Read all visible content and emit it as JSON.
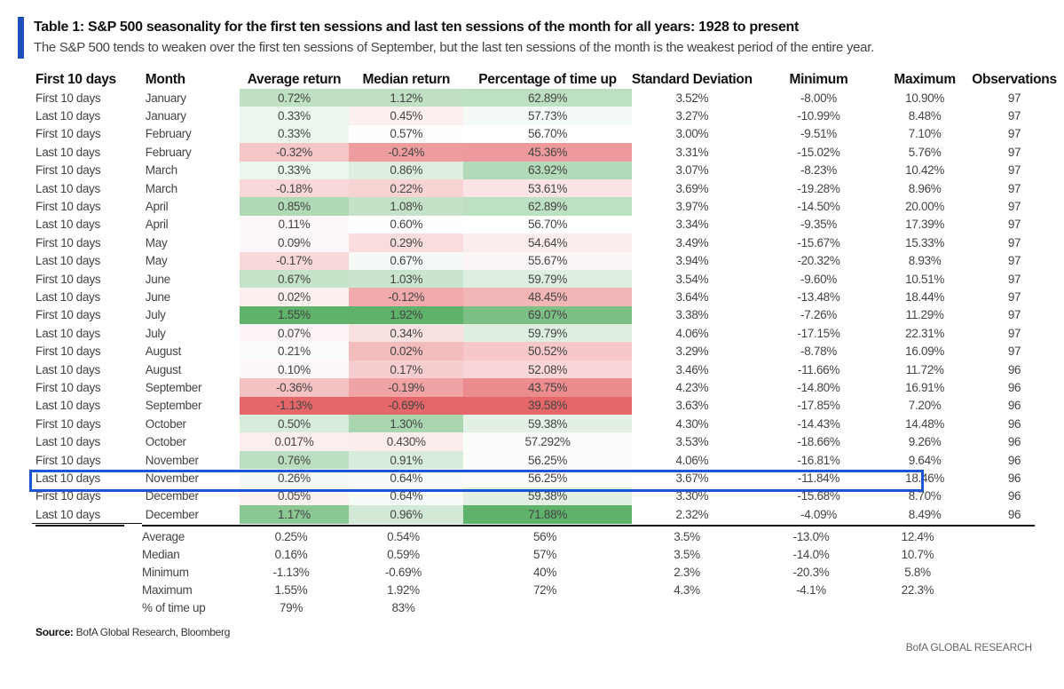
{
  "header": {
    "title": "Table 1: S&P 500 seasonality for the first ten sessions and last ten sessions of the month for all years: 1928 to present",
    "subtitle": "The S&P 500 tends to weaken over the first ten sessions of September, but the last ten sessions of the month is the weakest period of the entire year."
  },
  "columns": [
    "First 10 days",
    "Month",
    "Average return",
    "Median return",
    "Percentage of time up",
    "Standard Deviation",
    "Minimum",
    "Maximum",
    "Observations"
  ],
  "rows": [
    [
      "First 10 days",
      "January",
      "0.72%",
      "1.12%",
      "62.89%",
      "3.52%",
      "-8.00%",
      "10.90%",
      "97"
    ],
    [
      "Last 10 days",
      "January",
      "0.33%",
      "0.45%",
      "57.73%",
      "3.27%",
      "-10.99%",
      "8.48%",
      "97"
    ],
    [
      "First 10 days",
      "February",
      "0.33%",
      "0.57%",
      "56.70%",
      "3.00%",
      "-9.51%",
      "7.10%",
      "97"
    ],
    [
      "Last 10 days",
      "February",
      "-0.32%",
      "-0.24%",
      "45.36%",
      "3.31%",
      "-15.02%",
      "5.76%",
      "97"
    ],
    [
      "First 10 days",
      "March",
      "0.33%",
      "0.86%",
      "63.92%",
      "3.07%",
      "-8.23%",
      "10.42%",
      "97"
    ],
    [
      "Last 10 days",
      "March",
      "-0.18%",
      "0.22%",
      "53.61%",
      "3.69%",
      "-19.28%",
      "8.96%",
      "97"
    ],
    [
      "First 10 days",
      "April",
      "0.85%",
      "1.08%",
      "62.89%",
      "3.97%",
      "-14.50%",
      "20.00%",
      "97"
    ],
    [
      "Last 10 days",
      "April",
      "0.11%",
      "0.60%",
      "56.70%",
      "3.34%",
      "-9.35%",
      "17.39%",
      "97"
    ],
    [
      "First 10 days",
      "May",
      "0.09%",
      "0.29%",
      "54.64%",
      "3.49%",
      "-15.67%",
      "15.33%",
      "97"
    ],
    [
      "Last 10 days",
      "May",
      "-0.17%",
      "0.67%",
      "55.67%",
      "3.94%",
      "-20.32%",
      "8.93%",
      "97"
    ],
    [
      "First 10 days",
      "June",
      "0.67%",
      "1.03%",
      "59.79%",
      "3.54%",
      "-9.60%",
      "10.51%",
      "97"
    ],
    [
      "Last 10 days",
      "June",
      "0.02%",
      "-0.12%",
      "48.45%",
      "3.64%",
      "-13.48%",
      "18.44%",
      "97"
    ],
    [
      "First 10 days",
      "July",
      "1.55%",
      "1.92%",
      "69.07%",
      "3.38%",
      "-7.26%",
      "11.29%",
      "97"
    ],
    [
      "Last 10 days",
      "July",
      "0.07%",
      "0.34%",
      "59.79%",
      "4.06%",
      "-17.15%",
      "22.31%",
      "97"
    ],
    [
      "First 10 days",
      "August",
      "0.21%",
      "0.02%",
      "50.52%",
      "3.29%",
      "-8.78%",
      "16.09%",
      "97"
    ],
    [
      "Last 10 days",
      "August",
      "0.10%",
      "0.17%",
      "52.08%",
      "3.46%",
      "-11.66%",
      "11.72%",
      "96"
    ],
    [
      "First 10 days",
      "September",
      "-0.36%",
      "-0.19%",
      "43.75%",
      "4.23%",
      "-14.80%",
      "16.91%",
      "96"
    ],
    [
      "Last 10 days",
      "September",
      "-1.13%",
      "-0.69%",
      "39.58%",
      "3.63%",
      "-17.85%",
      "7.20%",
      "96"
    ],
    [
      "First 10 days",
      "October",
      "0.50%",
      "1.30%",
      "59.38%",
      "4.30%",
      "-14.43%",
      "14.48%",
      "96"
    ],
    [
      "Last 10 days",
      "October",
      "0.017%",
      "0.430%",
      "57.292%",
      "3.53%",
      "-18.66%",
      "9.26%",
      "96"
    ],
    [
      "First 10 days",
      "November",
      "0.76%",
      "0.91%",
      "56.25%",
      "4.06%",
      "-16.81%",
      "9.64%",
      "96"
    ],
    [
      "Last 10 days",
      "November",
      "0.26%",
      "0.64%",
      "56.25%",
      "3.67%",
      "-11.84%",
      "18.46%",
      "96"
    ],
    [
      "First 10 days",
      "December",
      "0.05%",
      "0.64%",
      "59.38%",
      "3.30%",
      "-15.68%",
      "8.70%",
      "96"
    ],
    [
      "Last 10 days",
      "December",
      "1.17%",
      "0.96%",
      "71.88%",
      "2.32%",
      "-4.09%",
      "8.49%",
      "96"
    ]
  ],
  "highlighted_row": 21,
  "summary": [
    [
      "Average",
      "0.25%",
      "0.54%",
      "56%",
      "3.5%",
      "-13.0%",
      "12.4%"
    ],
    [
      "Median",
      "0.16%",
      "0.59%",
      "57%",
      "3.5%",
      "-14.0%",
      "10.7%"
    ],
    [
      "Minimum",
      "-1.13%",
      "-0.69%",
      "40%",
      "2.3%",
      "-20.3%",
      "5.8%"
    ],
    [
      "Maximum",
      "1.55%",
      "1.92%",
      "72%",
      "4.3%",
      "-4.1%",
      "22.3%"
    ],
    [
      "% of time up",
      "79%",
      "83%",
      "",
      "",
      "",
      ""
    ]
  ],
  "heatmap_colors": {
    "low": "#e5676a",
    "mid": "#ffffff",
    "high": "#5fb26a"
  },
  "highlight_color": "#1a56d6",
  "source": {
    "label": "Source:",
    "text": " BofA Global Research, Bloomberg"
  },
  "brand": "BofA GLOBAL RESEARCH"
}
